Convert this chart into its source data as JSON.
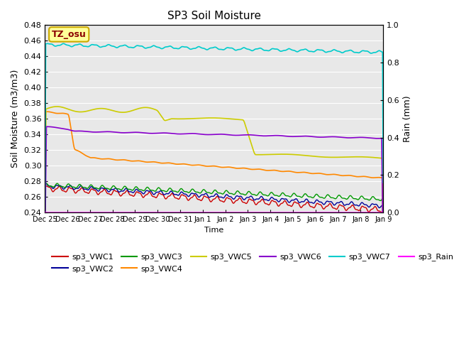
{
  "title": "SP3 Soil Moisture",
  "ylabel_left": "Soil Moisture (m3/m3)",
  "ylabel_right": "Rain (mm)",
  "xlabel": "Time",
  "ylim_left": [
    0.24,
    0.48
  ],
  "ylim_right": [
    0.0,
    1.0
  ],
  "background_color": "#e8e8e8",
  "annotation_text": "TZ_osu",
  "annotation_bg": "#ffff99",
  "annotation_border": "#ccaa00",
  "annotation_text_color": "#8b0000",
  "series": {
    "sp3_VWC1": {
      "color": "#cc0000",
      "lw": 1.0
    },
    "sp3_VWC2": {
      "color": "#000099",
      "lw": 1.0
    },
    "sp3_VWC3": {
      "color": "#009900",
      "lw": 1.0
    },
    "sp3_VWC4": {
      "color": "#ff8800",
      "lw": 1.2
    },
    "sp3_VWC5": {
      "color": "#cccc00",
      "lw": 1.2
    },
    "sp3_VWC6": {
      "color": "#8800cc",
      "lw": 1.2
    },
    "sp3_VWC7": {
      "color": "#00cccc",
      "lw": 1.2
    },
    "sp3_Rain": {
      "color": "#ff00ff",
      "lw": 1.0
    }
  },
  "xtick_labels": [
    "Dec 25",
    "Dec 26",
    "Dec 27",
    "Dec 28",
    "Dec 29",
    "Dec 30",
    "Dec 31",
    "Jan 1",
    "Jan 2",
    "Jan 3",
    "Jan 4",
    "Jan 5",
    "Jan 6",
    "Jan 7",
    "Jan 8",
    "Jan 9"
  ],
  "yticks_left": [
    0.24,
    0.26,
    0.28,
    0.3,
    0.32,
    0.34,
    0.36,
    0.38,
    0.4,
    0.42,
    0.44,
    0.46,
    0.48
  ],
  "yticks_right": [
    0.0,
    0.2,
    0.4,
    0.6,
    0.8,
    1.0
  ],
  "figsize": [
    6.4,
    4.8
  ],
  "dpi": 100
}
